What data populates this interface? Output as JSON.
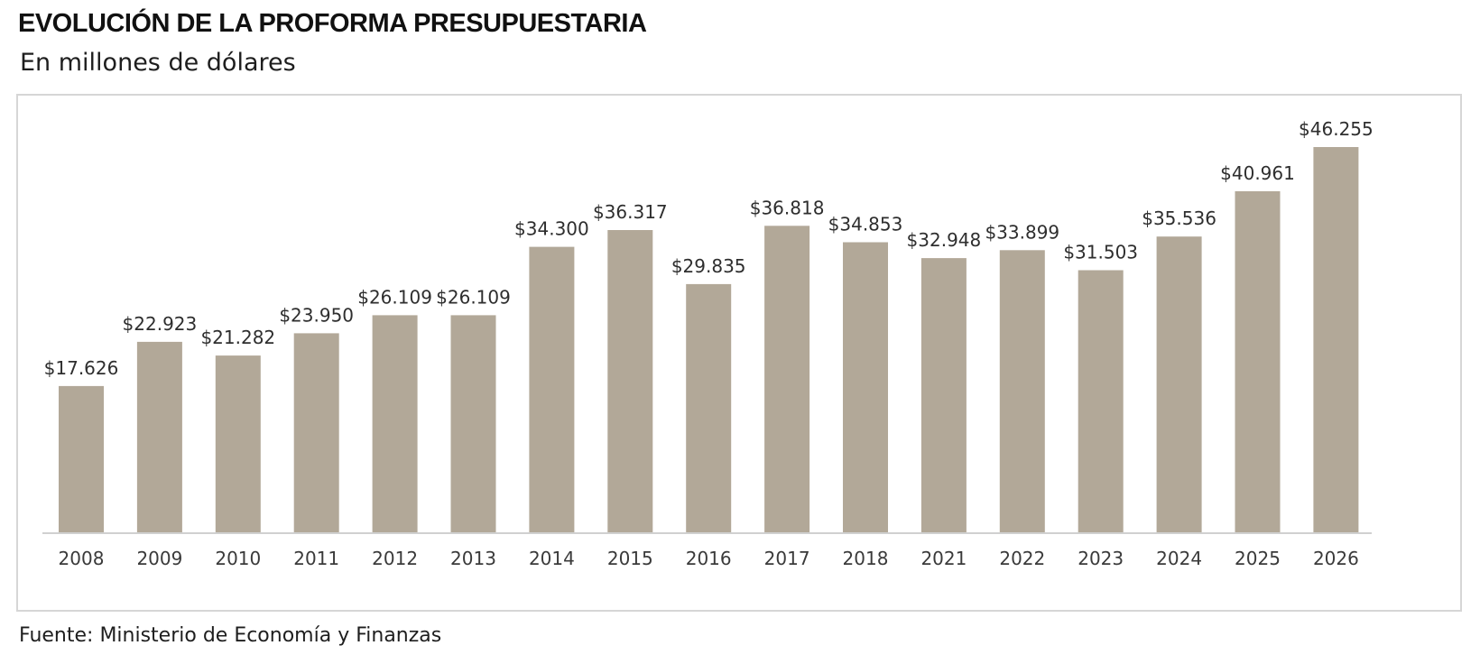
{
  "header": {
    "title": "EVOLUCIÓN DE LA PROFORMA PRESUPUESTARIA",
    "subtitle": "En millones de dólares"
  },
  "footer": {
    "source": "Fuente: Ministerio de Economía y Finanzas"
  },
  "colors": {
    "bar": "#b2a898",
    "axis": "#d0d0d0",
    "frame": "#d6d6d6"
  },
  "chart_data": {
    "type": "bar",
    "title": "EVOLUCIÓN DE LA PROFORMA PRESUPUESTARIA",
    "subtitle": "En millones de dólares",
    "xlabel": "",
    "ylabel": "",
    "categories": [
      "2008",
      "2009",
      "2010",
      "2011",
      "2012",
      "2013",
      "2014",
      "2015",
      "2016",
      "2017",
      "2018",
      "2021",
      "2022",
      "2023",
      "2024",
      "2025",
      "2026"
    ],
    "values": [
      17626,
      22923,
      21282,
      23950,
      26109,
      26109,
      34300,
      36317,
      29835,
      36818,
      34853,
      32948,
      33899,
      31503,
      35536,
      40961,
      46255
    ],
    "value_labels": [
      "$17.626",
      "$22.923",
      "$21.282",
      "$23.950",
      "$26.109",
      "$26.109",
      "$34.300",
      "$36.317",
      "$29.835",
      "$36.818",
      "$34.853",
      "$32.948",
      "$33.899",
      "$31.503",
      "$35.536",
      "$40.961",
      "$46.255"
    ],
    "ylim": [
      0,
      46255
    ],
    "grid": false,
    "legend": "none"
  }
}
